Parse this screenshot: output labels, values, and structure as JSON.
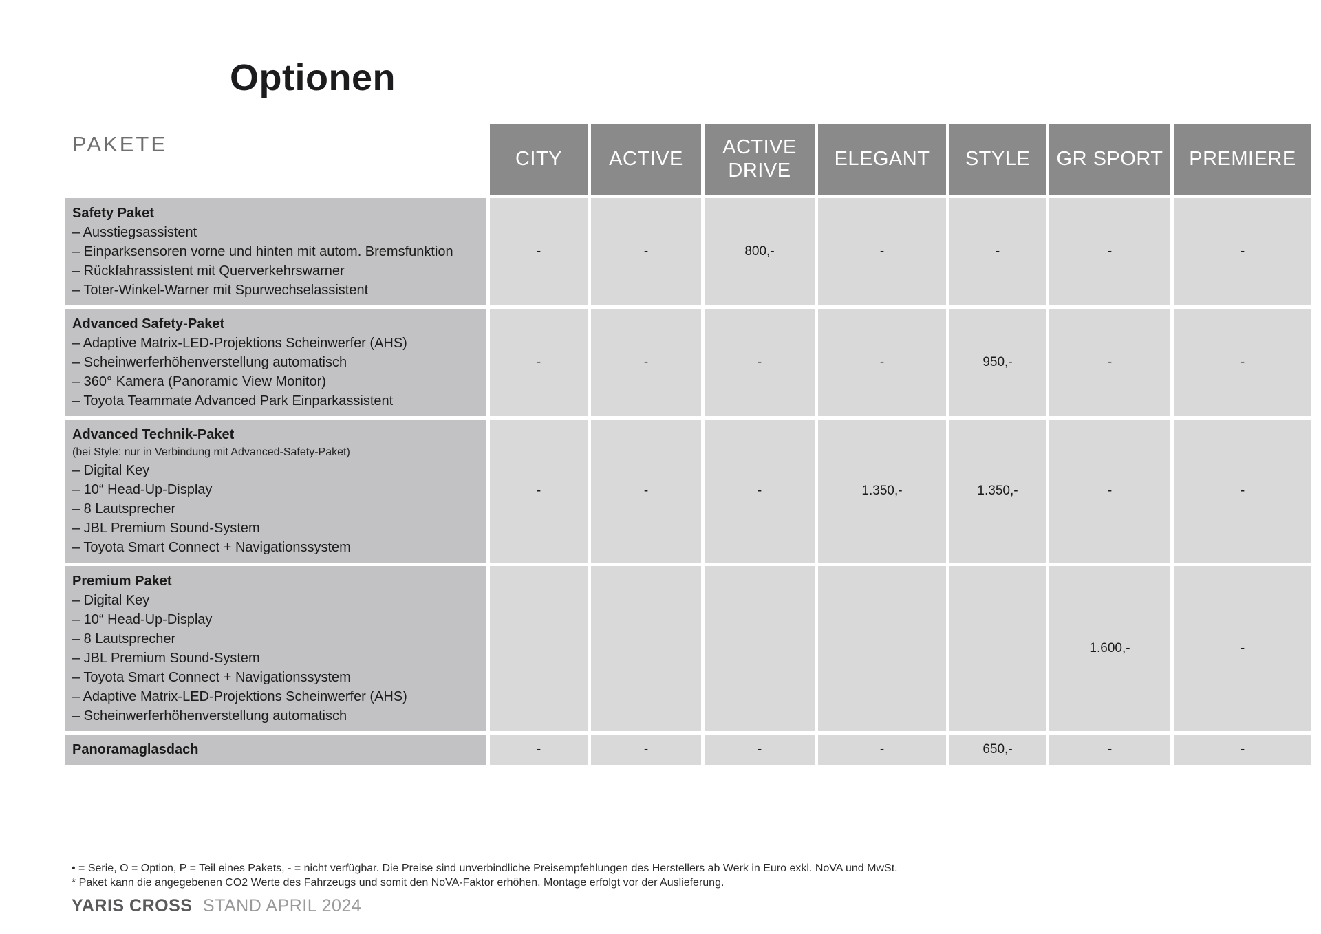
{
  "page": {
    "title": "Optionen",
    "section_label": "PAKETE"
  },
  "colors": {
    "header_bg": "#8a8a8a",
    "header_text": "#ffffff",
    "description_bg": "#c2c2c4",
    "value_bg": "#d9d9d9",
    "text": "#1b1b1b"
  },
  "table": {
    "columns": [
      "CITY",
      "ACTIVE",
      "ACTIVE DRIVE",
      "ELEGANT",
      "STYLE",
      "GR SPORT",
      "PREMIERE"
    ],
    "rows": [
      {
        "name": "Safety Paket",
        "note": "",
        "items": [
          "– Ausstiegsassistent",
          "– Einparksensoren vorne und hinten mit autom. Bremsfunktion",
          "– Rückfahrassistent mit Querverkehrswarner",
          "– Toter-Winkel-Warner mit Spurwechselassistent"
        ],
        "values": [
          "-",
          "-",
          "800,-",
          "-",
          "-",
          "-",
          "-"
        ]
      },
      {
        "name": "Advanced Safety-Paket",
        "note": "",
        "items": [
          "– Adaptive Matrix-LED-Projektions Scheinwerfer (AHS)",
          "– Scheinwerferhöhenverstellung automatisch",
          "– 360° Kamera (Panoramic View Monitor)",
          "– Toyota Teammate Advanced Park Einparkassistent"
        ],
        "values": [
          "-",
          "-",
          "-",
          "-",
          "950,-",
          "-",
          "-"
        ]
      },
      {
        "name": "Advanced Technik-Paket",
        "note": "(bei Style: nur in Verbindung mit Advanced-Safety-Paket)",
        "items": [
          "– Digital Key",
          "– 10“ Head-Up-Display",
          "– 8 Lautsprecher",
          "– JBL Premium Sound-System",
          "– Toyota Smart Connect + Navigationssystem"
        ],
        "values": [
          "-",
          "-",
          "-",
          "1.350,-",
          "1.350,-",
          "-",
          "-"
        ]
      },
      {
        "name": "Premium Paket",
        "note": "",
        "items": [
          "– Digital Key",
          "– 10“ Head-Up-Display",
          "– 8 Lautsprecher",
          "– JBL Premium Sound-System",
          "– Toyota Smart Connect + Navigationssystem",
          "– Adaptive Matrix-LED-Projektions Scheinwerfer (AHS)",
          "– Scheinwerferhöhenverstellung automatisch"
        ],
        "values": [
          "",
          "",
          "",
          "",
          "",
          "1.600,-",
          "-"
        ]
      },
      {
        "name": "Panoramaglasdach",
        "note": "",
        "items": [],
        "values": [
          "-",
          "-",
          "-",
          "-",
          "650,-",
          "-",
          "-"
        ]
      }
    ]
  },
  "footer": {
    "line1": "• = Serie, O = Option, P = Teil eines Pakets, - = nicht verfügbar. Die Preise sind unverbindliche Preisempfehlungen des Herstellers ab Werk in Euro exkl. NoVA und MwSt.",
    "line2": "* Paket kann die angegebenen CO2 Werte des Fahrzeugs und somit den NoVA-Faktor erhöhen. Montage erfolgt vor der Auslieferung.",
    "brand": "YARIS CROSS",
    "stand": "STAND APRIL 2024"
  }
}
